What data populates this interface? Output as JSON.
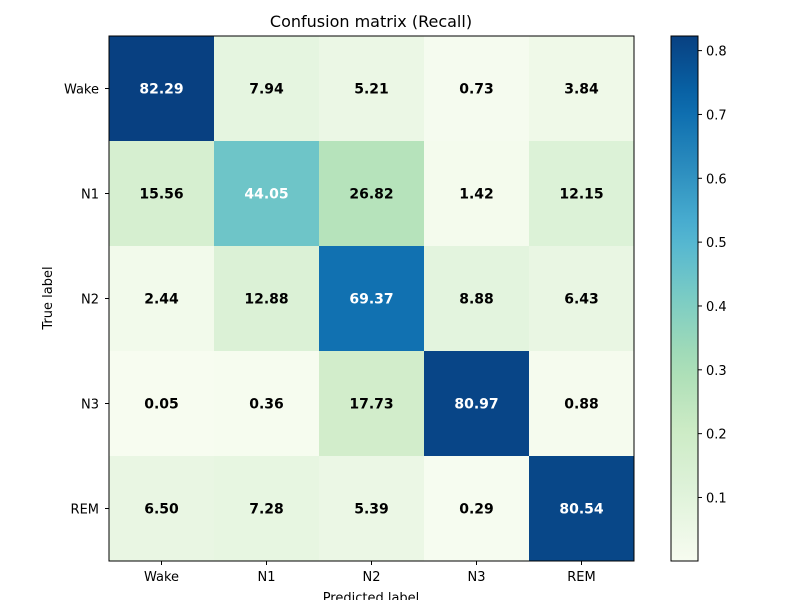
{
  "chart_data": {
    "type": "heatmap",
    "title": "Confusion matrix (Recall)",
    "xlabel": "Predicted label",
    "ylabel": "True label",
    "x_categories": [
      "Wake",
      "N1",
      "N2",
      "N3",
      "REM"
    ],
    "y_categories": [
      "Wake",
      "N1",
      "N2",
      "N3",
      "REM"
    ],
    "values": [
      [
        82.29,
        7.94,
        5.21,
        0.73,
        3.84
      ],
      [
        15.56,
        44.05,
        26.82,
        1.42,
        12.15
      ],
      [
        2.44,
        12.88,
        69.37,
        8.88,
        6.43
      ],
      [
        0.05,
        0.36,
        17.73,
        80.97,
        0.88
      ],
      [
        6.5,
        7.28,
        5.39,
        0.29,
        80.54
      ]
    ],
    "value_labels": [
      [
        "82.29",
        "7.94",
        "5.21",
        "0.73",
        "3.84"
      ],
      [
        "15.56",
        "44.05",
        "26.82",
        "1.42",
        "12.15"
      ],
      [
        "2.44",
        "12.88",
        "69.37",
        "8.88",
        "6.43"
      ],
      [
        "0.05",
        "0.36",
        "17.73",
        "80.97",
        "0.88"
      ],
      [
        "6.50",
        "7.28",
        "5.39",
        "0.29",
        "80.54"
      ]
    ],
    "colormap": "GnBu",
    "color_range": [
      0.0005,
      0.8229
    ],
    "colorbar_ticks": [
      0.1,
      0.2,
      0.3,
      0.4,
      0.5,
      0.6,
      0.7,
      0.8
    ],
    "colorbar_tick_labels": [
      "0.1",
      "0.2",
      "0.3",
      "0.4",
      "0.5",
      "0.6",
      "0.7",
      "0.8"
    ],
    "text_color_light": "#ffffff",
    "text_color_dark": "#000000"
  }
}
